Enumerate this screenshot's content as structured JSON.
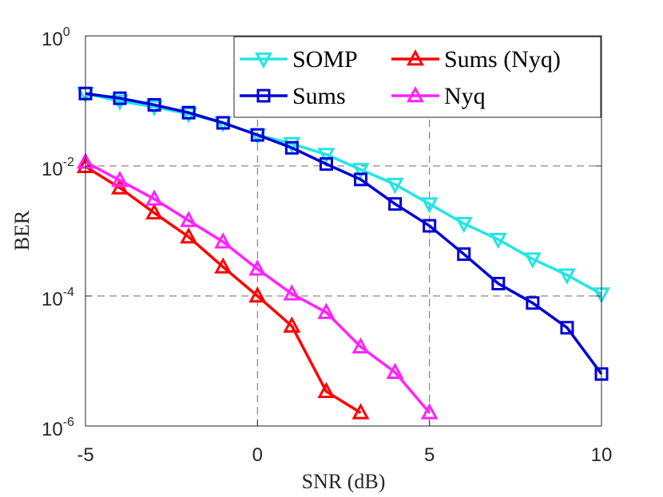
{
  "chart_data": {
    "type": "line",
    "title": "",
    "xlabel": "SNR (dB)",
    "ylabel": "BER",
    "xlim": [
      -5,
      10
    ],
    "ylim": [
      1e-06,
      1
    ],
    "yscale": "log",
    "grid": true,
    "xticks": [
      -5,
      0,
      5,
      10
    ],
    "xtick_labels": [
      "-5",
      "0",
      "5",
      "10"
    ],
    "yticks": [
      {
        "base": "10",
        "exp": "-6",
        "value": 1e-06
      },
      {
        "base": "10",
        "exp": "-4",
        "value": 0.0001
      },
      {
        "base": "10",
        "exp": "-2",
        "value": 0.01
      },
      {
        "base": "10",
        "exp": "0",
        "value": 1
      }
    ],
    "legend_position": "top-right",
    "series": [
      {
        "name": "SOMP",
        "color": "#22e5e5",
        "marker": "triangle-down",
        "x": [
          -5,
          -4,
          -3,
          -2,
          -1,
          0,
          1,
          2,
          3,
          4,
          5,
          6,
          7,
          8,
          9,
          10
        ],
        "y": [
          0.13,
          0.099,
          0.081,
          0.063,
          0.046,
          0.03,
          0.022,
          0.015,
          0.0088,
          0.0052,
          0.0026,
          0.0013,
          0.00074,
          0.00037,
          0.00021,
          0.000107
        ]
      },
      {
        "name": "Sums",
        "color": "#0000d5",
        "marker": "square",
        "x": [
          -5,
          -4,
          -3,
          -2,
          -1,
          0,
          1,
          2,
          3,
          4,
          5,
          6,
          7,
          8,
          9,
          10
        ],
        "y": [
          0.13,
          0.11,
          0.087,
          0.066,
          0.046,
          0.03,
          0.019,
          0.0107,
          0.0062,
          0.0026,
          0.0012,
          0.00044,
          0.000155,
          7.8e-05,
          3.25e-05,
          6.3e-06
        ]
      },
      {
        "name": "Sums (Nyq)",
        "color": "#ff0000",
        "marker": "triangle-up",
        "x": [
          -5,
          -4,
          -3,
          -2,
          -1,
          0,
          1,
          2,
          3
        ],
        "y": [
          0.0098,
          0.0046,
          0.0019,
          0.00081,
          0.00028,
          0.0001,
          3.45e-05,
          3.4e-06,
          1.6e-06
        ]
      },
      {
        "name": "Nyq",
        "color": "#ff22ff",
        "marker": "triangle-up",
        "x": [
          -5,
          -4,
          -3,
          -2,
          -1,
          0,
          1,
          2,
          3,
          4,
          5
        ],
        "y": [
          0.0115,
          0.006,
          0.0031,
          0.00145,
          0.00068,
          0.00026,
          0.000108,
          5.6e-05,
          1.65e-05,
          6.7e-06,
          1.6e-06
        ]
      }
    ]
  }
}
